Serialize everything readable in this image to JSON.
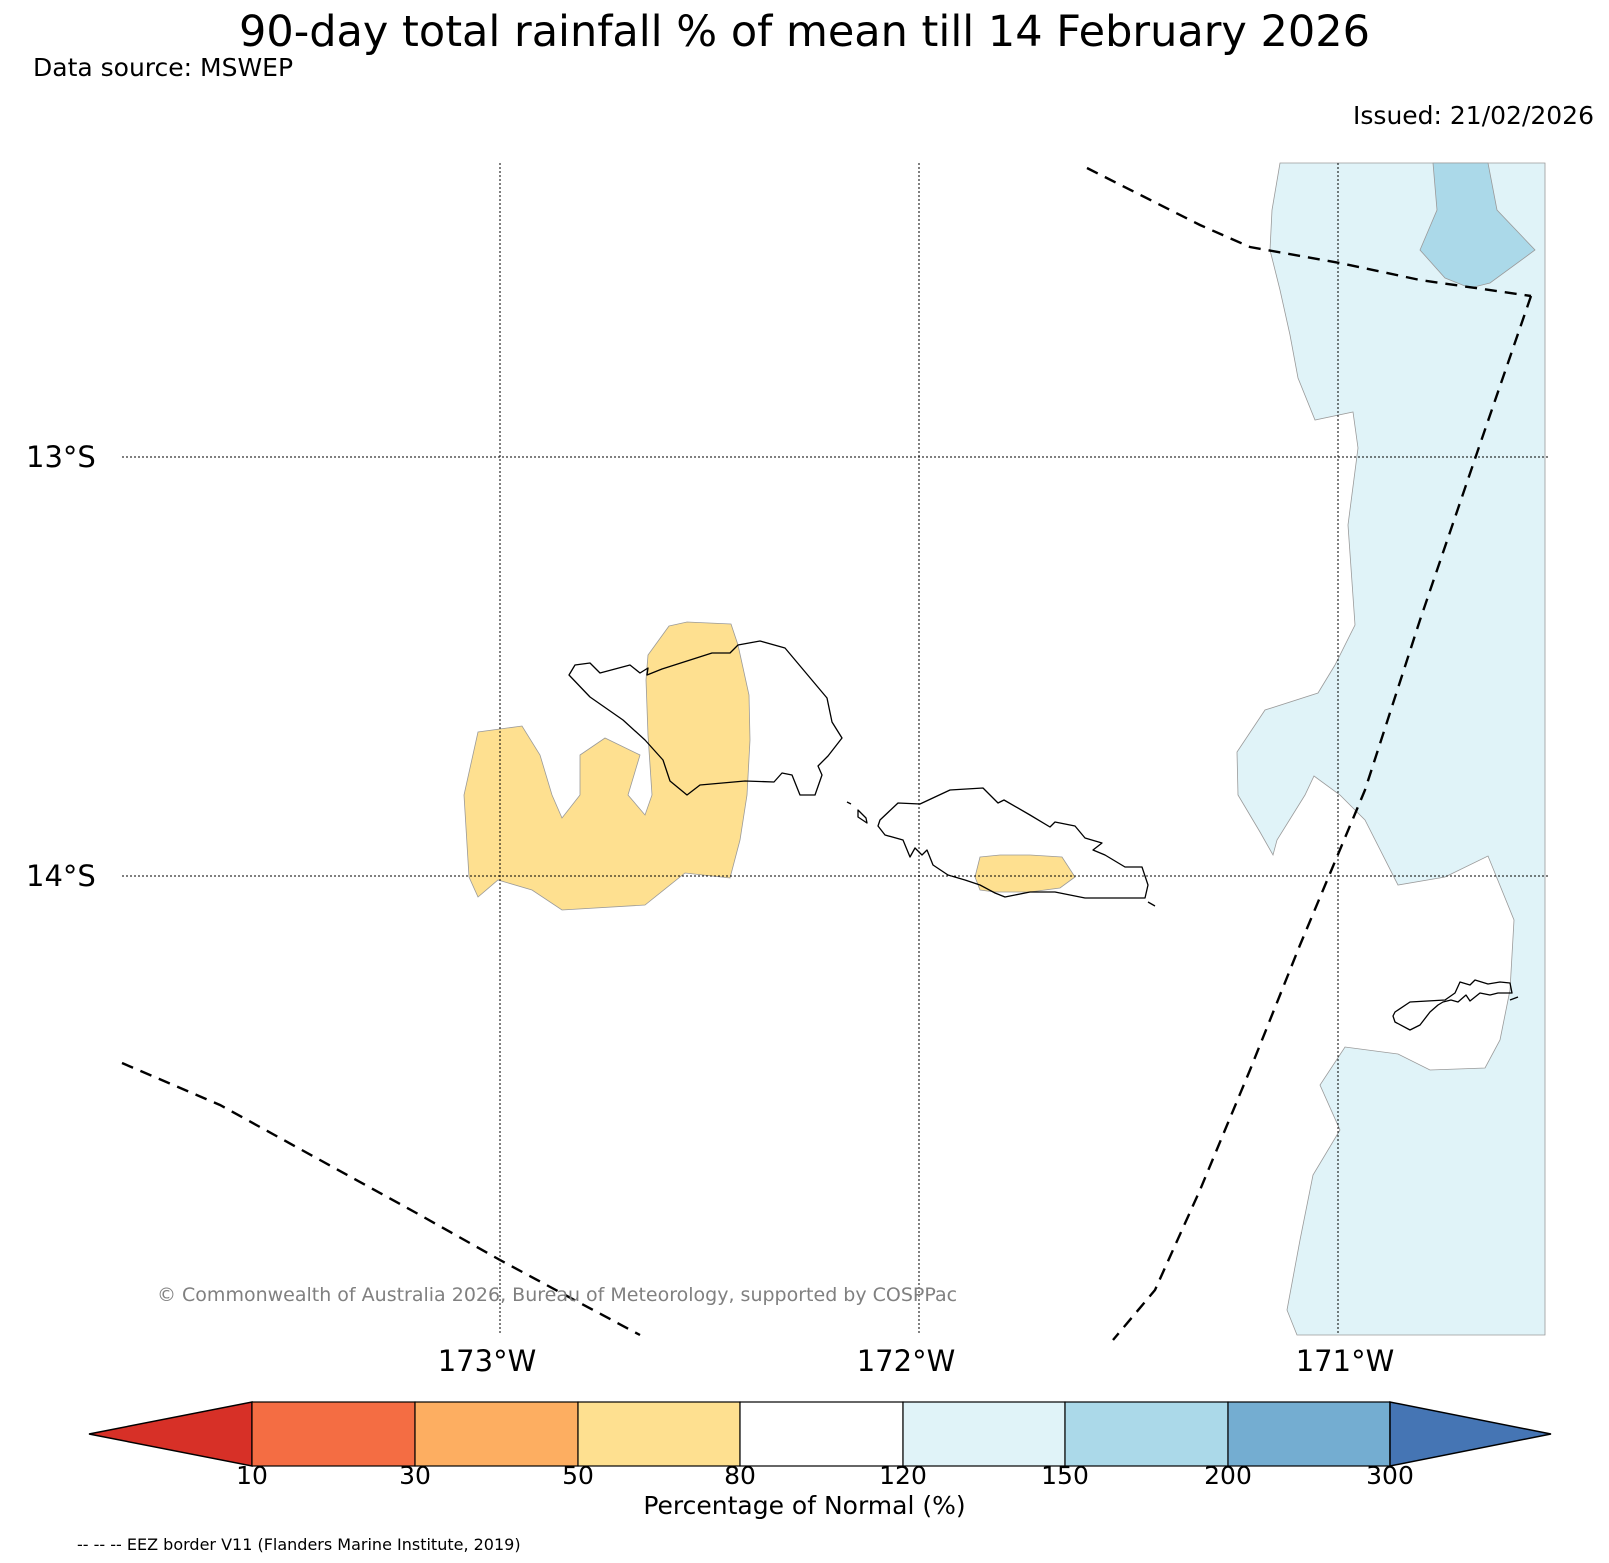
{
  "title": "90-day total rainfall % of mean till 14 February 2026",
  "data_source": "Data source: MSWEP",
  "issued": "Issued: 21/02/2026",
  "copyright": "© Commonwealth of Australia 2026, Bureau of Meteorology, supported by COSPPac",
  "eez_note": "-- -- -- EEZ border V11 (Flanders Marine Institute, 2019)",
  "map": {
    "lat_labels": [
      "13°S",
      "14°S"
    ],
    "lon_labels": [
      "173°W",
      "172°W",
      "171°W"
    ]
  },
  "colorbar": {
    "title": "Percentage of Normal (%)",
    "ticks": [
      "10",
      "30",
      "50",
      "80",
      "120",
      "150",
      "200",
      "300"
    ],
    "colors": [
      "#d73027",
      "#f46d43",
      "#fdae61",
      "#fee090",
      "#ffffff",
      "#e0f3f8",
      "#abd9e9",
      "#74add1",
      "#4575b4"
    ]
  },
  "colors": {
    "below_normal_fill": "#fee090",
    "above_normal_fill": "#e0f3f8",
    "well_above_fill": "#abd9e9",
    "copyright_text": "#808080"
  }
}
